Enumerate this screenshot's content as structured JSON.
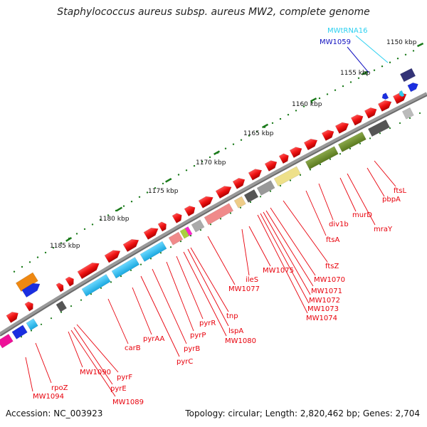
{
  "title": "Staphylococcus aureus subsp. aureus MW2, complete genome",
  "footer": {
    "accession": "Accession: NC_003923",
    "summary": "Topology: circular; Length: 2,820,462 bp; Genes: 2,704"
  },
  "ticks": [
    "1150 kbp",
    "1155 kbp",
    "1160 kbp",
    "1165 kbp",
    "1170 kbp",
    "1175 kbp",
    "1180 kbp",
    "1185 kbp"
  ],
  "labels": {
    "trna": "MWtRNA16",
    "blue": "MW1059",
    "genes": [
      "ftsL",
      "pbpA",
      "mraY",
      "murD",
      "div1b",
      "ftsA",
      "ftsZ",
      "MW1070",
      "MW1071",
      "MW1072",
      "MW1073",
      "MW1074",
      "MW1075",
      "ileS",
      "MW1077",
      "tnp",
      "lspA",
      "MW1080",
      "pyrR",
      "pyrP",
      "pyrB",
      "pyrC",
      "pyrAA",
      "carB",
      "pyrF",
      "pyrE",
      "MW1089",
      "MW1090",
      "rpoZ",
      "MW1094"
    ]
  },
  "colors": {
    "forward_gene": "#ee1111",
    "backbone": "#888888",
    "pyr_operon": "#22bbee",
    "fts_region": "#6a8a2a",
    "trna": "#33ccee",
    "blue_gene": "#1a2ee0",
    "dark_gene": "#333377",
    "orange_gene": "#ee8811",
    "magenta_gene": "#ee1199"
  }
}
